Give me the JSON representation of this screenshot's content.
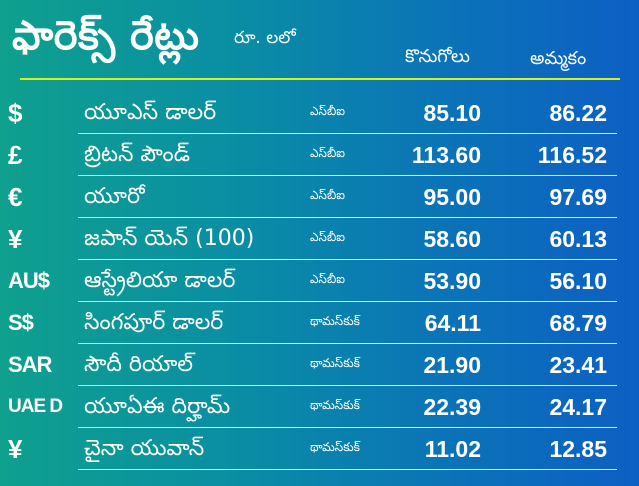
{
  "header": {
    "title": "ఫారెక్స్ రేట్లు",
    "unit": "రూ. లలో",
    "buy_label": "కొనుగోలు",
    "sell_label": "అమ్మకం"
  },
  "rates": [
    {
      "symbol": "$",
      "currency": "యూఎస్ డాలర్",
      "bank": "ఎస్‌బీఐ",
      "buy": "85.10",
      "sell": "86.22"
    },
    {
      "symbol": "£",
      "currency": "బ్రిటన్ పౌండ్",
      "bank": "ఎస్‌బీఐ",
      "buy": "113.60",
      "sell": "116.52"
    },
    {
      "symbol": "€",
      "currency": "యూరో",
      "bank": "ఎస్‌బీఐ",
      "buy": "95.00",
      "sell": "97.69"
    },
    {
      "symbol": "¥",
      "currency": "జపాన్ యెన్ (100)",
      "bank": "ఎస్‌బీఐ",
      "buy": "58.60",
      "sell": "60.13"
    },
    {
      "symbol": "AU$",
      "currency": "ఆస్ట్రేలియా డాలర్",
      "bank": "ఎస్‌బీఐ",
      "buy": "53.90",
      "sell": "56.10"
    },
    {
      "symbol": "S$",
      "currency": "సింగపూర్ డాలర్",
      "bank": "థామస్‌కుక్",
      "buy": "64.11",
      "sell": "68.79"
    },
    {
      "symbol": "SAR",
      "currency": "సౌదీ రియాల్",
      "bank": "థామస్‌కుక్",
      "buy": "21.90",
      "sell": "23.41"
    },
    {
      "symbol": "UAE D",
      "currency": "యూఏఈ దిర్హామ్",
      "bank": "థామస్‌కుక్",
      "buy": "22.39",
      "sell": "24.17"
    },
    {
      "symbol": "¥",
      "currency": "చైనా యువాన్",
      "bank": "థామస్‌కుక్",
      "buy": "11.02",
      "sell": "12.85"
    }
  ],
  "colors": {
    "accent_rule": "#d7f01a",
    "text": "#ffffff"
  }
}
